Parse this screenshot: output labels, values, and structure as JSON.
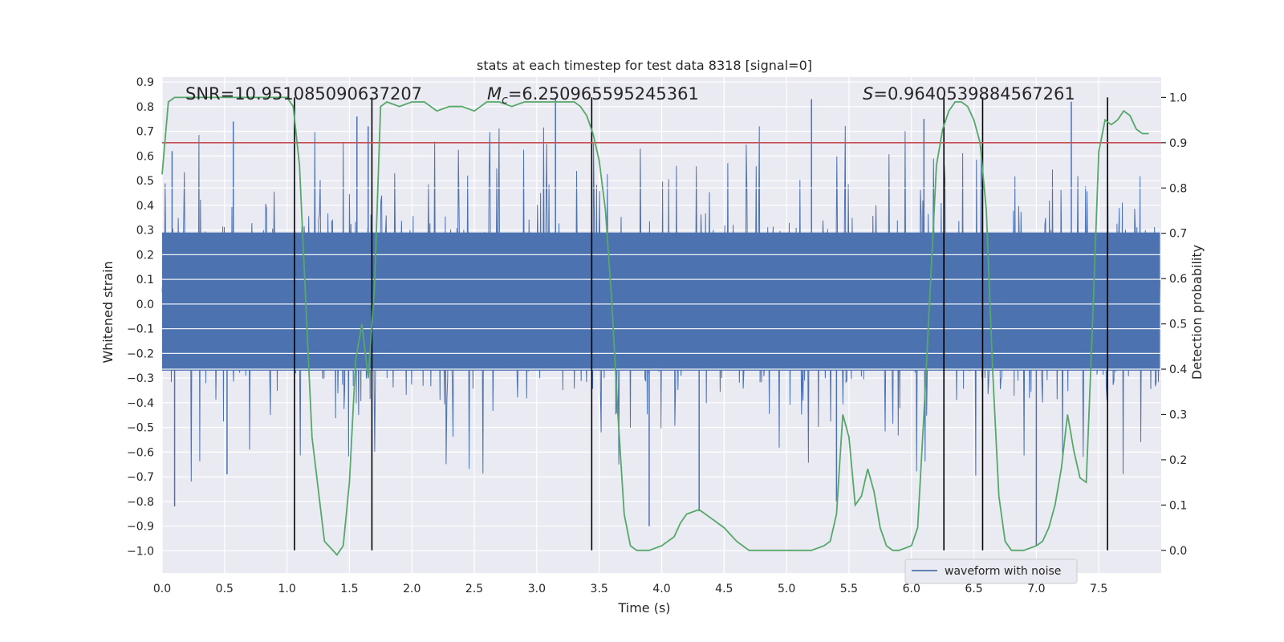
{
  "chart_data": {
    "type": "line",
    "title": "stats at each timestep for test data 8318 [signal=0]",
    "xlabel": "Time (s)",
    "ylabel": "Whitened strain",
    "ylabel_right": "Detection probability",
    "xlim": [
      0.0,
      8.0
    ],
    "ylim": [
      -1.09,
      0.92
    ],
    "ylim_right": [
      -0.05,
      1.045
    ],
    "x_ticks": [
      0.0,
      0.5,
      1.0,
      1.5,
      2.0,
      2.5,
      3.0,
      3.5,
      4.0,
      4.5,
      5.0,
      5.5,
      6.0,
      6.5,
      7.0,
      7.5
    ],
    "x_tick_labels": [
      "0.0",
      "0.5",
      "1.0",
      "1.5",
      "2.0",
      "2.5",
      "3.0",
      "3.5",
      "4.0",
      "4.5",
      "5.0",
      "5.5",
      "6.0",
      "6.5",
      "7.0",
      "7.5"
    ],
    "y_ticks": [
      0.9,
      0.8,
      0.7,
      0.6,
      0.5,
      0.4,
      0.3,
      0.2,
      0.1,
      0.0,
      -0.1,
      -0.2,
      -0.3,
      -0.4,
      -0.5,
      -0.6,
      -0.7,
      -0.8,
      -0.9,
      -1.0
    ],
    "y_tick_labels": [
      "0.9",
      "0.8",
      "0.7",
      "0.6",
      "0.5",
      "0.4",
      "0.3",
      "0.2",
      "0.1",
      "0.0",
      "−0.1",
      "−0.2",
      "−0.3",
      "−0.4",
      "−0.5",
      "−0.6",
      "−0.7",
      "−0.8",
      "−0.9",
      "−1.0"
    ],
    "y_right_ticks": [
      1.0,
      0.9,
      0.8,
      0.7,
      0.6,
      0.5,
      0.4,
      0.3,
      0.2,
      0.1,
      0.0
    ],
    "y_right_tick_labels": [
      "1.0",
      "0.9",
      "0.8",
      "0.7",
      "0.6",
      "0.5",
      "0.4",
      "0.3",
      "0.2",
      "0.1",
      "0.0"
    ],
    "grid": true,
    "legend_position": "lower-right",
    "annotations": {
      "snr": "SNR=10.951085090637207",
      "mc_symbol": "M",
      "mc_sub": "c",
      "mc_value": "=6.250965595245361",
      "s_symbol": "S",
      "s_value": "=0.9640539884567261"
    },
    "colors": {
      "background": "#eaeaf2",
      "grid": "#ffffff",
      "waveform": "#4c72b0",
      "probability": "#55a868",
      "threshold": "#c44e52",
      "marker": "#000000"
    },
    "series": [
      {
        "name": "waveform with noise",
        "axis": "left",
        "style": "noise",
        "core_band": [
          -0.27,
          0.29
        ],
        "spike_range_top": [
          0.3,
          0.83
        ],
        "spike_range_bottom": [
          -0.3,
          -0.99
        ],
        "notable_spikes": [
          {
            "x": 0.08,
            "y": 0.62
          },
          {
            "x": 0.1,
            "y": -0.82
          },
          {
            "x": 0.57,
            "y": 0.74
          },
          {
            "x": 0.52,
            "y": -0.69
          },
          {
            "x": 1.56,
            "y": 0.76
          },
          {
            "x": 1.65,
            "y": 0.72
          },
          {
            "x": 3.15,
            "y": 0.83
          },
          {
            "x": 3.9,
            "y": -0.9
          },
          {
            "x": 5.2,
            "y": 0.83
          },
          {
            "x": 6.1,
            "y": 0.75
          },
          {
            "x": 7.28,
            "y": 0.82
          },
          {
            "x": 7.0,
            "y": -0.98
          },
          {
            "x": 4.3,
            "y": -0.84
          },
          {
            "x": 5.4,
            "y": -0.8
          }
        ]
      },
      {
        "name": "",
        "axis": "right",
        "x": [
          0.0,
          0.05,
          0.1,
          0.15,
          0.2,
          0.3,
          0.4,
          0.5,
          0.6,
          0.7,
          0.8,
          0.9,
          1.0,
          1.05,
          1.1,
          1.15,
          1.2,
          1.3,
          1.4,
          1.45,
          1.5,
          1.55,
          1.6,
          1.65,
          1.7,
          1.75,
          1.8,
          1.9,
          2.0,
          2.1,
          2.2,
          2.3,
          2.4,
          2.5,
          2.6,
          2.7,
          2.8,
          2.9,
          3.0,
          3.1,
          3.2,
          3.3,
          3.35,
          3.4,
          3.45,
          3.5,
          3.55,
          3.6,
          3.65,
          3.7,
          3.75,
          3.8,
          3.9,
          4.0,
          4.1,
          4.15,
          4.2,
          4.3,
          4.4,
          4.5,
          4.6,
          4.7,
          4.8,
          4.9,
          5.0,
          5.1,
          5.2,
          5.3,
          5.35,
          5.4,
          5.45,
          5.5,
          5.55,
          5.6,
          5.65,
          5.7,
          5.75,
          5.8,
          5.85,
          5.9,
          6.0,
          6.05,
          6.1,
          6.2,
          6.25,
          6.3,
          6.35,
          6.4,
          6.45,
          6.5,
          6.55,
          6.6,
          6.65,
          6.7,
          6.75,
          6.8,
          6.9,
          7.0,
          7.05,
          7.1,
          7.15,
          7.2,
          7.25,
          7.3,
          7.35,
          7.4,
          7.45,
          7.5,
          7.55,
          7.6,
          7.65,
          7.7,
          7.75,
          7.8,
          7.85,
          7.9
        ],
        "values": [
          0.83,
          0.99,
          1.0,
          1.0,
          1.0,
          1.0,
          1.0,
          1.0,
          1.0,
          1.0,
          1.0,
          1.0,
          1.0,
          0.98,
          0.85,
          0.55,
          0.25,
          0.02,
          -0.01,
          0.01,
          0.15,
          0.42,
          0.5,
          0.38,
          0.58,
          0.98,
          0.99,
          0.98,
          0.99,
          0.99,
          0.97,
          0.98,
          0.98,
          0.97,
          0.99,
          0.99,
          0.98,
          0.99,
          0.99,
          0.99,
          0.99,
          0.99,
          0.98,
          0.96,
          0.92,
          0.86,
          0.75,
          0.55,
          0.3,
          0.08,
          0.01,
          0.0,
          0.0,
          0.01,
          0.03,
          0.06,
          0.08,
          0.09,
          0.07,
          0.05,
          0.02,
          0.0,
          0.0,
          0.0,
          0.0,
          0.0,
          0.0,
          0.01,
          0.02,
          0.08,
          0.3,
          0.25,
          0.1,
          0.12,
          0.18,
          0.13,
          0.05,
          0.01,
          0.0,
          0.0,
          0.01,
          0.05,
          0.3,
          0.85,
          0.93,
          0.97,
          0.99,
          0.99,
          0.98,
          0.95,
          0.9,
          0.75,
          0.4,
          0.12,
          0.02,
          0.0,
          0.0,
          0.01,
          0.02,
          0.05,
          0.1,
          0.18,
          0.3,
          0.22,
          0.16,
          0.15,
          0.5,
          0.88,
          0.95,
          0.94,
          0.95,
          0.97,
          0.96,
          0.93,
          0.92,
          0.92
        ]
      }
    ],
    "threshold_right": 0.9,
    "marker_lines_x": [
      1.06,
      1.68,
      3.44,
      6.26,
      6.57,
      7.57
    ]
  }
}
